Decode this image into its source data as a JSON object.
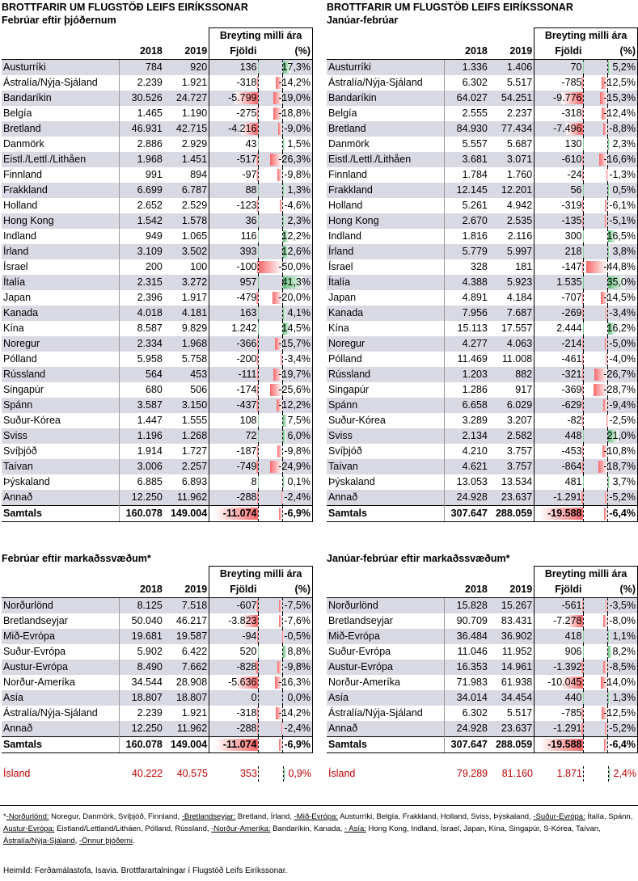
{
  "panels": [
    {
      "id": "p1",
      "title": "BROTTFARIR UM FLUGSTÖÐ LEIFS EIRÍKSSONAR",
      "subtitle": "Febrúar eftir þjóðernum",
      "head_change": "Breyting milli ára",
      "col_2018": "2018",
      "col_2019": "2019",
      "col_count": "Fjöldi",
      "col_pct": "(%)",
      "rows": [
        [
          "Austurríki",
          "784",
          "920",
          "136",
          "17,3%",
          136,
          17.3
        ],
        [
          "Ástralía/Nýja-Sjáland",
          "2.239",
          "1.921",
          "-318",
          "-14,2%",
          -318,
          -14.2
        ],
        [
          "Bandaríkin",
          "30.526",
          "24.727",
          "-5.799",
          "-19,0%",
          -5799,
          -19.0
        ],
        [
          "Belgía",
          "1.465",
          "1.190",
          "-275",
          "-18,8%",
          -275,
          -18.8
        ],
        [
          "Bretland",
          "46.931",
          "42.715",
          "-4.216",
          "-9,0%",
          -4216,
          -9.0
        ],
        [
          "Danmörk",
          "2.886",
          "2.929",
          "43",
          "1,5%",
          43,
          1.5
        ],
        [
          "Eistl./Lettl./Lithåen",
          "1.968",
          "1.451",
          "-517",
          "-26,3%",
          -517,
          -26.3
        ],
        [
          "Finnland",
          "991",
          "894",
          "-97",
          "-9,8%",
          -97,
          -9.8
        ],
        [
          "Frakkland",
          "6.699",
          "6.787",
          "88",
          "1,3%",
          88,
          1.3
        ],
        [
          "Holland",
          "2.652",
          "2.529",
          "-123",
          "-4,6%",
          -123,
          -4.6
        ],
        [
          "Hong Kong",
          "1.542",
          "1.578",
          "36",
          "2,3%",
          36,
          2.3
        ],
        [
          "Indland",
          "949",
          "1.065",
          "116",
          "12,2%",
          116,
          12.2
        ],
        [
          "Írland",
          "3.109",
          "3.502",
          "393",
          "12,6%",
          393,
          12.6
        ],
        [
          "Ísrael",
          "200",
          "100",
          "-100",
          "-50,0%",
          -100,
          -50.0
        ],
        [
          "Ítalía",
          "2.315",
          "3.272",
          "957",
          "41,3%",
          957,
          41.3
        ],
        [
          "Japan",
          "2.396",
          "1.917",
          "-479",
          "-20,0%",
          -479,
          -20.0
        ],
        [
          "Kanada",
          "4.018",
          "4.181",
          "163",
          "4,1%",
          163,
          4.1
        ],
        [
          "Kína",
          "8.587",
          "9.829",
          "1.242",
          "14,5%",
          1242,
          14.5
        ],
        [
          "Noregur",
          "2.334",
          "1.968",
          "-366",
          "-15,7%",
          -366,
          -15.7
        ],
        [
          "Pólland",
          "5.958",
          "5.758",
          "-200",
          "-3,4%",
          -200,
          -3.4
        ],
        [
          "Rússland",
          "564",
          "453",
          "-111",
          "-19,7%",
          -111,
          -19.7
        ],
        [
          "Singapúr",
          "680",
          "506",
          "-174",
          "-25,6%",
          -174,
          -25.6
        ],
        [
          "Spánn",
          "3.587",
          "3.150",
          "-437",
          "-12,2%",
          -437,
          -12.2
        ],
        [
          "Suður-Kórea",
          "1.447",
          "1.555",
          "108",
          "7,5%",
          108,
          7.5
        ],
        [
          "Sviss",
          "1.196",
          "1.268",
          "72",
          "6,0%",
          72,
          6.0
        ],
        [
          "Svíþjóð",
          "1.914",
          "1.727",
          "-187",
          "-9,8%",
          -187,
          -9.8
        ],
        [
          "Taívan",
          "3.006",
          "2.257",
          "-749",
          "-24,9%",
          -749,
          -24.9
        ],
        [
          "Þýskaland",
          "6.885",
          "6.893",
          "8",
          "0,1%",
          8,
          0.1
        ],
        [
          "Annað",
          "12.250",
          "11.962",
          "-288",
          "-2,4%",
          -288,
          -2.4
        ]
      ],
      "total": [
        "Samtals",
        "160.078",
        "149.004",
        "-11.074",
        "-6,9%",
        -11074,
        -6.9
      ],
      "maxAbsCount": 11074,
      "maxAbsPct": 50
    },
    {
      "id": "p2",
      "title": "BROTTFARIR UM FLUGSTÖÐ LEIFS EIRÍKSSONAR",
      "subtitle": "Janúar-febrúar",
      "head_change": "Breyting milli ára",
      "col_2018": "2018",
      "col_2019": "2019",
      "col_count": "Fjöldi",
      "col_pct": "(%)",
      "rows": [
        [
          "Austurríki",
          "1.336",
          "1.406",
          "70",
          "5,2%",
          70,
          5.2
        ],
        [
          "Ástralía/Nýja-Sjáland",
          "6.302",
          "5.517",
          "-785",
          "-12,5%",
          -785,
          -12.5
        ],
        [
          "Bandaríkin",
          "64.027",
          "54.251",
          "-9.776",
          "-15,3%",
          -9776,
          -15.3
        ],
        [
          "Belgía",
          "2.555",
          "2.237",
          "-318",
          "-12,4%",
          -318,
          -12.4
        ],
        [
          "Bretland",
          "84.930",
          "77.434",
          "-7.496",
          "-8,8%",
          -7496,
          -8.8
        ],
        [
          "Danmörk",
          "5.557",
          "5.687",
          "130",
          "2,3%",
          130,
          2.3
        ],
        [
          "Eistl./Lettl./Lithåen",
          "3.681",
          "3.071",
          "-610",
          "-16,6%",
          -610,
          -16.6
        ],
        [
          "Finnland",
          "1.784",
          "1.760",
          "-24",
          "-1,3%",
          -24,
          -1.3
        ],
        [
          "Frakkland",
          "12.145",
          "12.201",
          "56",
          "0,5%",
          56,
          0.5
        ],
        [
          "Holland",
          "5.261",
          "4.942",
          "-319",
          "-6,1%",
          -319,
          -6.1
        ],
        [
          "Hong Kong",
          "2.670",
          "2.535",
          "-135",
          "-5,1%",
          -135,
          -5.1
        ],
        [
          "Indland",
          "1.816",
          "2.116",
          "300",
          "16,5%",
          300,
          16.5
        ],
        [
          "Írland",
          "5.779",
          "5.997",
          "218",
          "3,8%",
          218,
          3.8
        ],
        [
          "Ísrael",
          "328",
          "181",
          "-147",
          "-44,8%",
          -147,
          -44.8
        ],
        [
          "Ítalía",
          "4.388",
          "5.923",
          "1.535",
          "35,0%",
          1535,
          35.0
        ],
        [
          "Japan",
          "4.891",
          "4.184",
          "-707",
          "-14,5%",
          -707,
          -14.5
        ],
        [
          "Kanada",
          "7.956",
          "7.687",
          "-269",
          "-3,4%",
          -269,
          -3.4
        ],
        [
          "Kína",
          "15.113",
          "17.557",
          "2.444",
          "16,2%",
          2444,
          16.2
        ],
        [
          "Noregur",
          "4.277",
          "4.063",
          "-214",
          "-5,0%",
          -214,
          -5.0
        ],
        [
          "Pólland",
          "11.469",
          "11.008",
          "-461",
          "-4,0%",
          -461,
          -4.0
        ],
        [
          "Rússland",
          "1.203",
          "882",
          "-321",
          "-26,7%",
          -321,
          -26.7
        ],
        [
          "Singapúr",
          "1.286",
          "917",
          "-369",
          "-28,7%",
          -369,
          -28.7
        ],
        [
          "Spánn",
          "6.658",
          "6.029",
          "-629",
          "-9,4%",
          -629,
          -9.4
        ],
        [
          "Suður-Kórea",
          "3.289",
          "3.207",
          "-82",
          "-2,5%",
          -82,
          -2.5
        ],
        [
          "Sviss",
          "2.134",
          "2.582",
          "448",
          "21,0%",
          448,
          21.0
        ],
        [
          "Svíþjóð",
          "4.210",
          "3.757",
          "-453",
          "-10,8%",
          -453,
          -10.8
        ],
        [
          "Taívan",
          "4.621",
          "3.757",
          "-864",
          "-18,7%",
          -864,
          -18.7
        ],
        [
          "Þýskaland",
          "13.053",
          "13.534",
          "481",
          "3,7%",
          481,
          3.7
        ],
        [
          "Annað",
          "24.928",
          "23.637",
          "-1.291",
          "-5,2%",
          -1291,
          -5.2
        ]
      ],
      "total": [
        "Samtals",
        "307.647",
        "288.059",
        "-19.588",
        "-6,4%",
        -19588,
        -6.4
      ],
      "maxAbsCount": 19588,
      "maxAbsPct": 50
    },
    {
      "id": "p3",
      "title": "",
      "subtitle": "Febrúar eftir markaðssvæðum*",
      "head_change": "Breyting milli ára",
      "col_2018": "2018",
      "col_2019": "2019",
      "col_count": "Fjöldi",
      "col_pct": "(%)",
      "rows": [
        [
          "Norðurlönd",
          "8.125",
          "7.518",
          "-607",
          "-7,5%",
          -607,
          -7.5
        ],
        [
          "Bretlandseyjar",
          "50.040",
          "46.217",
          "-3.823",
          "-7,6%",
          -3823,
          -7.6
        ],
        [
          "Mið-Evrópa",
          "19.681",
          "19.587",
          "-94",
          "-0,5%",
          -94,
          -0.5
        ],
        [
          "Suður-Evrópa",
          "5.902",
          "6.422",
          "520",
          "8,8%",
          520,
          8.8
        ],
        [
          "Austur-Evrópa",
          "8.490",
          "7.662",
          "-828",
          "-9,8%",
          -828,
          -9.8
        ],
        [
          "Norður-Ameríka",
          "34.544",
          "28.908",
          "-5.636",
          "-16,3%",
          -5636,
          -16.3
        ],
        [
          "Asía",
          "18.807",
          "18.807",
          "0",
          "0,0%",
          0,
          0.0
        ],
        [
          "Ástralía/Nýja-Sjáland",
          "2.239",
          "1.921",
          "-318",
          "-14,2%",
          -318,
          -14.2
        ],
        [
          "Annað",
          "12.250",
          "11.962",
          "-288",
          "-2,4%",
          -288,
          -2.4
        ]
      ],
      "total": [
        "Samtals",
        "160.078",
        "149.004",
        "-11.074",
        "-6,9%",
        -11074,
        -6.9
      ],
      "island": [
        "Ísland",
        "40.222",
        "40.575",
        "353",
        "0,9%",
        353,
        0.9
      ],
      "maxAbsCount": 11074,
      "maxAbsPct": 50
    },
    {
      "id": "p4",
      "title": "",
      "subtitle": "Janúar-febrúar eftir markaðssvæðum*",
      "head_change": "Breyting milli ára",
      "col_2018": "2018",
      "col_2019": "2019",
      "col_count": "Fjöldi",
      "col_pct": "(%)",
      "rows": [
        [
          "Norðurlönd",
          "15.828",
          "15.267",
          "-561",
          "-3,5%",
          -561,
          -3.5
        ],
        [
          "Bretlandseyjar",
          "90.709",
          "83.431",
          "-7.278",
          "-8,0%",
          -7278,
          -8.0
        ],
        [
          "Mið-Evrópa",
          "36.484",
          "36.902",
          "418",
          "1,1%",
          418,
          1.1
        ],
        [
          "Suður-Evrópa",
          "11.046",
          "11.952",
          "906",
          "8,2%",
          906,
          8.2
        ],
        [
          "Austur-Evrópa",
          "16.353",
          "14.961",
          "-1.392",
          "-8,5%",
          -1392,
          -8.5
        ],
        [
          "Norður-Ameríka",
          "71.983",
          "61.938",
          "-10.045",
          "-14,0%",
          -10045,
          -14.0
        ],
        [
          "Asía",
          "34.014",
          "34.454",
          "440",
          "1,3%",
          440,
          1.3
        ],
        [
          "Ástralía/Nýja-Sjáland",
          "6.302",
          "5.517",
          "-785",
          "-12,5%",
          -785,
          -12.5
        ],
        [
          "Annað",
          "24.928",
          "23.637",
          "-1.291",
          "-5,2%",
          -1291,
          -5.2
        ]
      ],
      "total": [
        "Samtals",
        "307.647",
        "288.059",
        "-19.588",
        "-6,4%",
        -19588,
        -6.4
      ],
      "island": [
        "Ísland",
        "79.289",
        "81.160",
        "1.871",
        "2,4%",
        1871,
        2.4
      ],
      "maxAbsCount": 19588,
      "maxAbsPct": 50
    }
  ],
  "footnote": {
    "star": "*",
    "parts": [
      [
        "-Norðurlönd:",
        " Noregur, Danmörk, Svíþjóð, Finnland, "
      ],
      [
        "-Bretlandseyjar:",
        " Bretland, Írland, "
      ],
      [
        "-Mið-Evrópa:",
        "  Austurríki, Belgía, Frakkland, Holland, Sviss, Þýskaland, "
      ],
      [
        "-Suður-Evrópa:",
        " Ítalía, Spánn, "
      ],
      [
        "Austur-Evrópa:",
        "  Eistland/Lettland/Litháen, Pólland, Rússland, "
      ],
      [
        "-Norður-Ameríka:",
        "  Bandaríkin, Kanada, "
      ],
      [
        "- Asía:",
        "  Hong Kong, Indland, Ísrael, Japan, Kína, Singapúr, S-Kórea, Taívan, "
      ],
      [
        "Ástralía/Nýja-Sjáland",
        ", "
      ],
      [
        "-Önnur þjóðerni",
        "."
      ]
    ]
  },
  "source": "Heimild: Ferðamálastofa, Isavia. Brottfarartalningar í Flugstöð Leifs Eiríkssonar."
}
